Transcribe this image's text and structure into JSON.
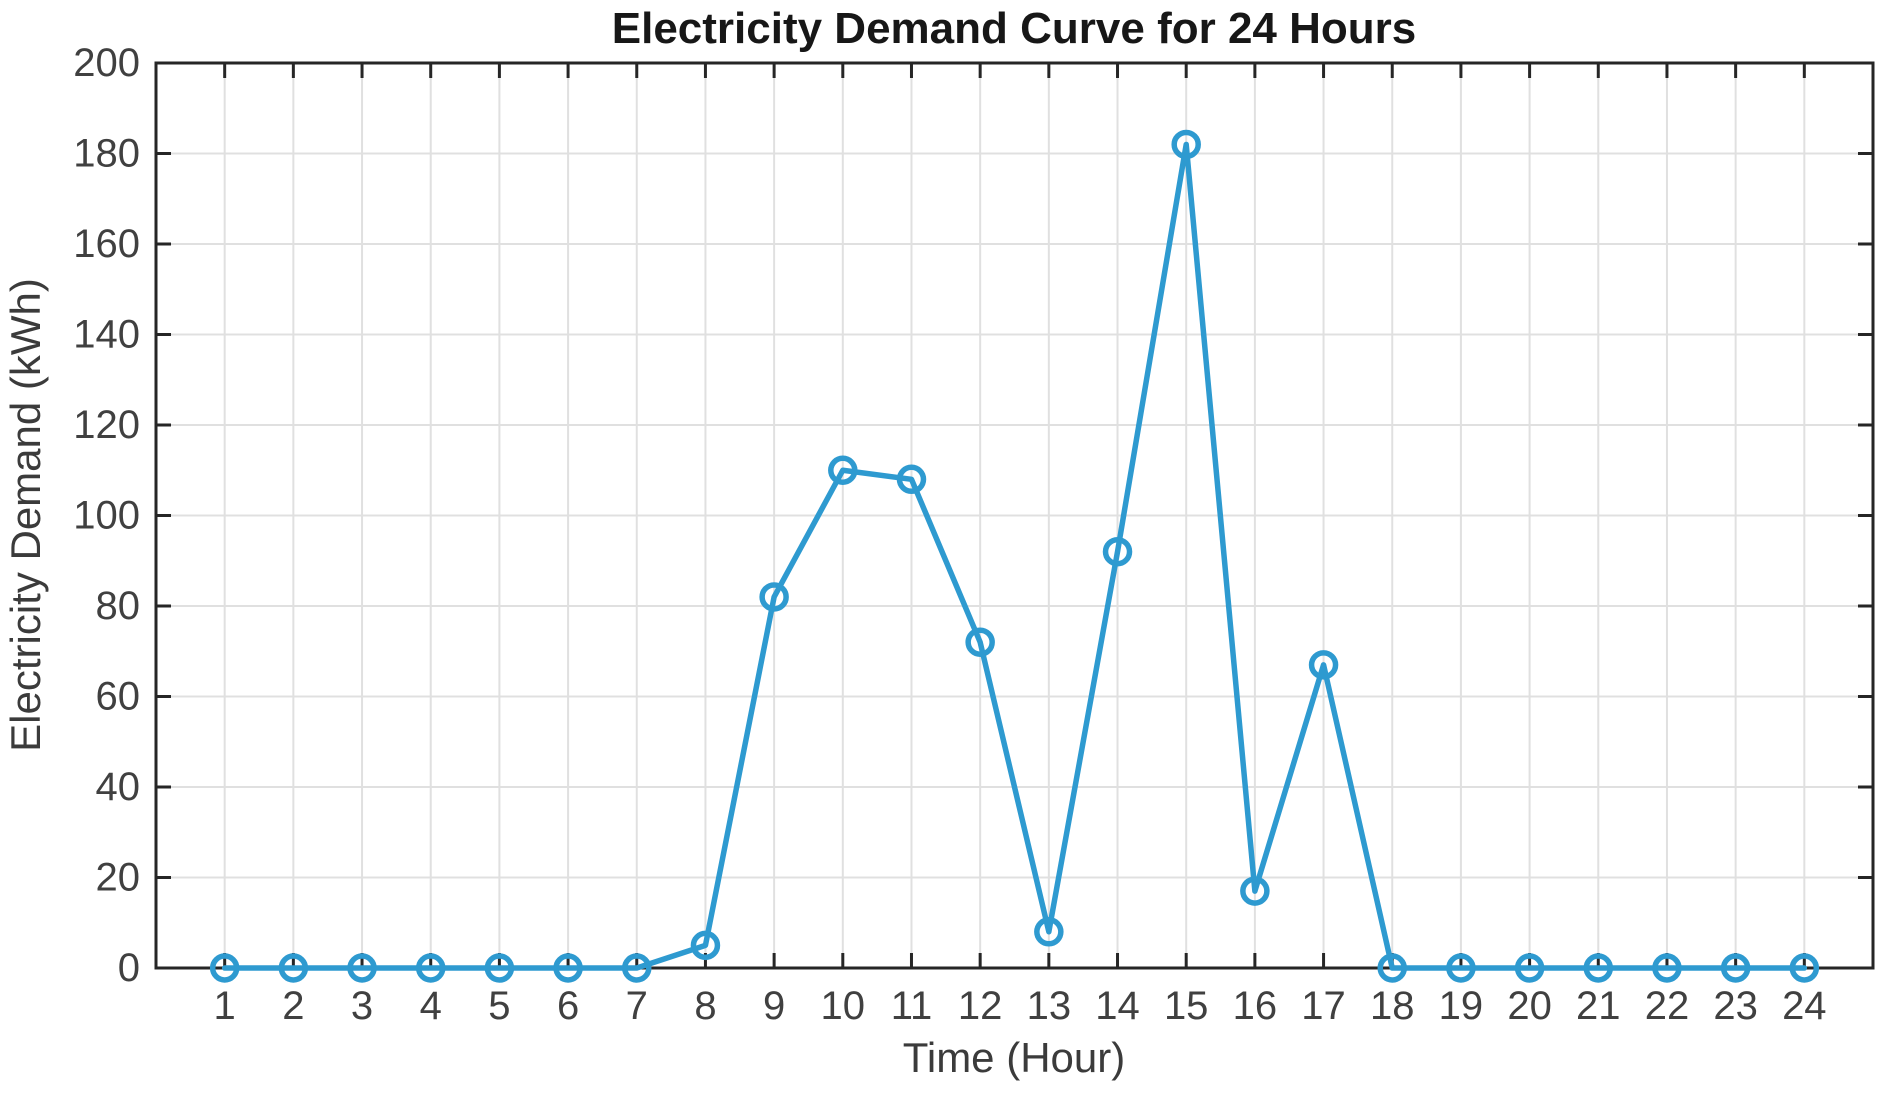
{
  "chart_data": {
    "type": "line",
    "title": "Electricity Demand Curve for 24 Hours",
    "xlabel": "Time (Hour)",
    "ylabel": "Electricity Demand (kWh)",
    "x": [
      1,
      2,
      3,
      4,
      5,
      6,
      7,
      8,
      9,
      10,
      11,
      12,
      13,
      14,
      15,
      16,
      17,
      18,
      19,
      20,
      21,
      22,
      23,
      24
    ],
    "values": [
      0,
      0,
      0,
      0,
      0,
      0,
      0,
      5,
      82,
      110,
      108,
      72,
      8,
      92,
      182,
      17,
      67,
      0,
      0,
      0,
      0,
      0,
      0,
      0
    ],
    "series_name": "Electricity Demand",
    "xlim": [
      0,
      25
    ],
    "ylim": [
      0,
      200
    ],
    "xticks": [
      1,
      2,
      3,
      4,
      5,
      6,
      7,
      8,
      9,
      10,
      11,
      12,
      13,
      14,
      15,
      16,
      17,
      18,
      19,
      20,
      21,
      22,
      23,
      24
    ],
    "yticks": [
      0,
      20,
      40,
      60,
      80,
      100,
      120,
      140,
      160,
      180,
      200
    ],
    "grid": true,
    "box": true,
    "tick_direction": "in",
    "legend": "none",
    "marker": "o",
    "colors": {
      "line": "#2E9AD0",
      "axis": "#262626",
      "grid": "#E0E0E0",
      "tick_label": "#404040",
      "axis_label": "#3B3B3B",
      "title": "#171717",
      "background": "#FFFFFF"
    }
  }
}
